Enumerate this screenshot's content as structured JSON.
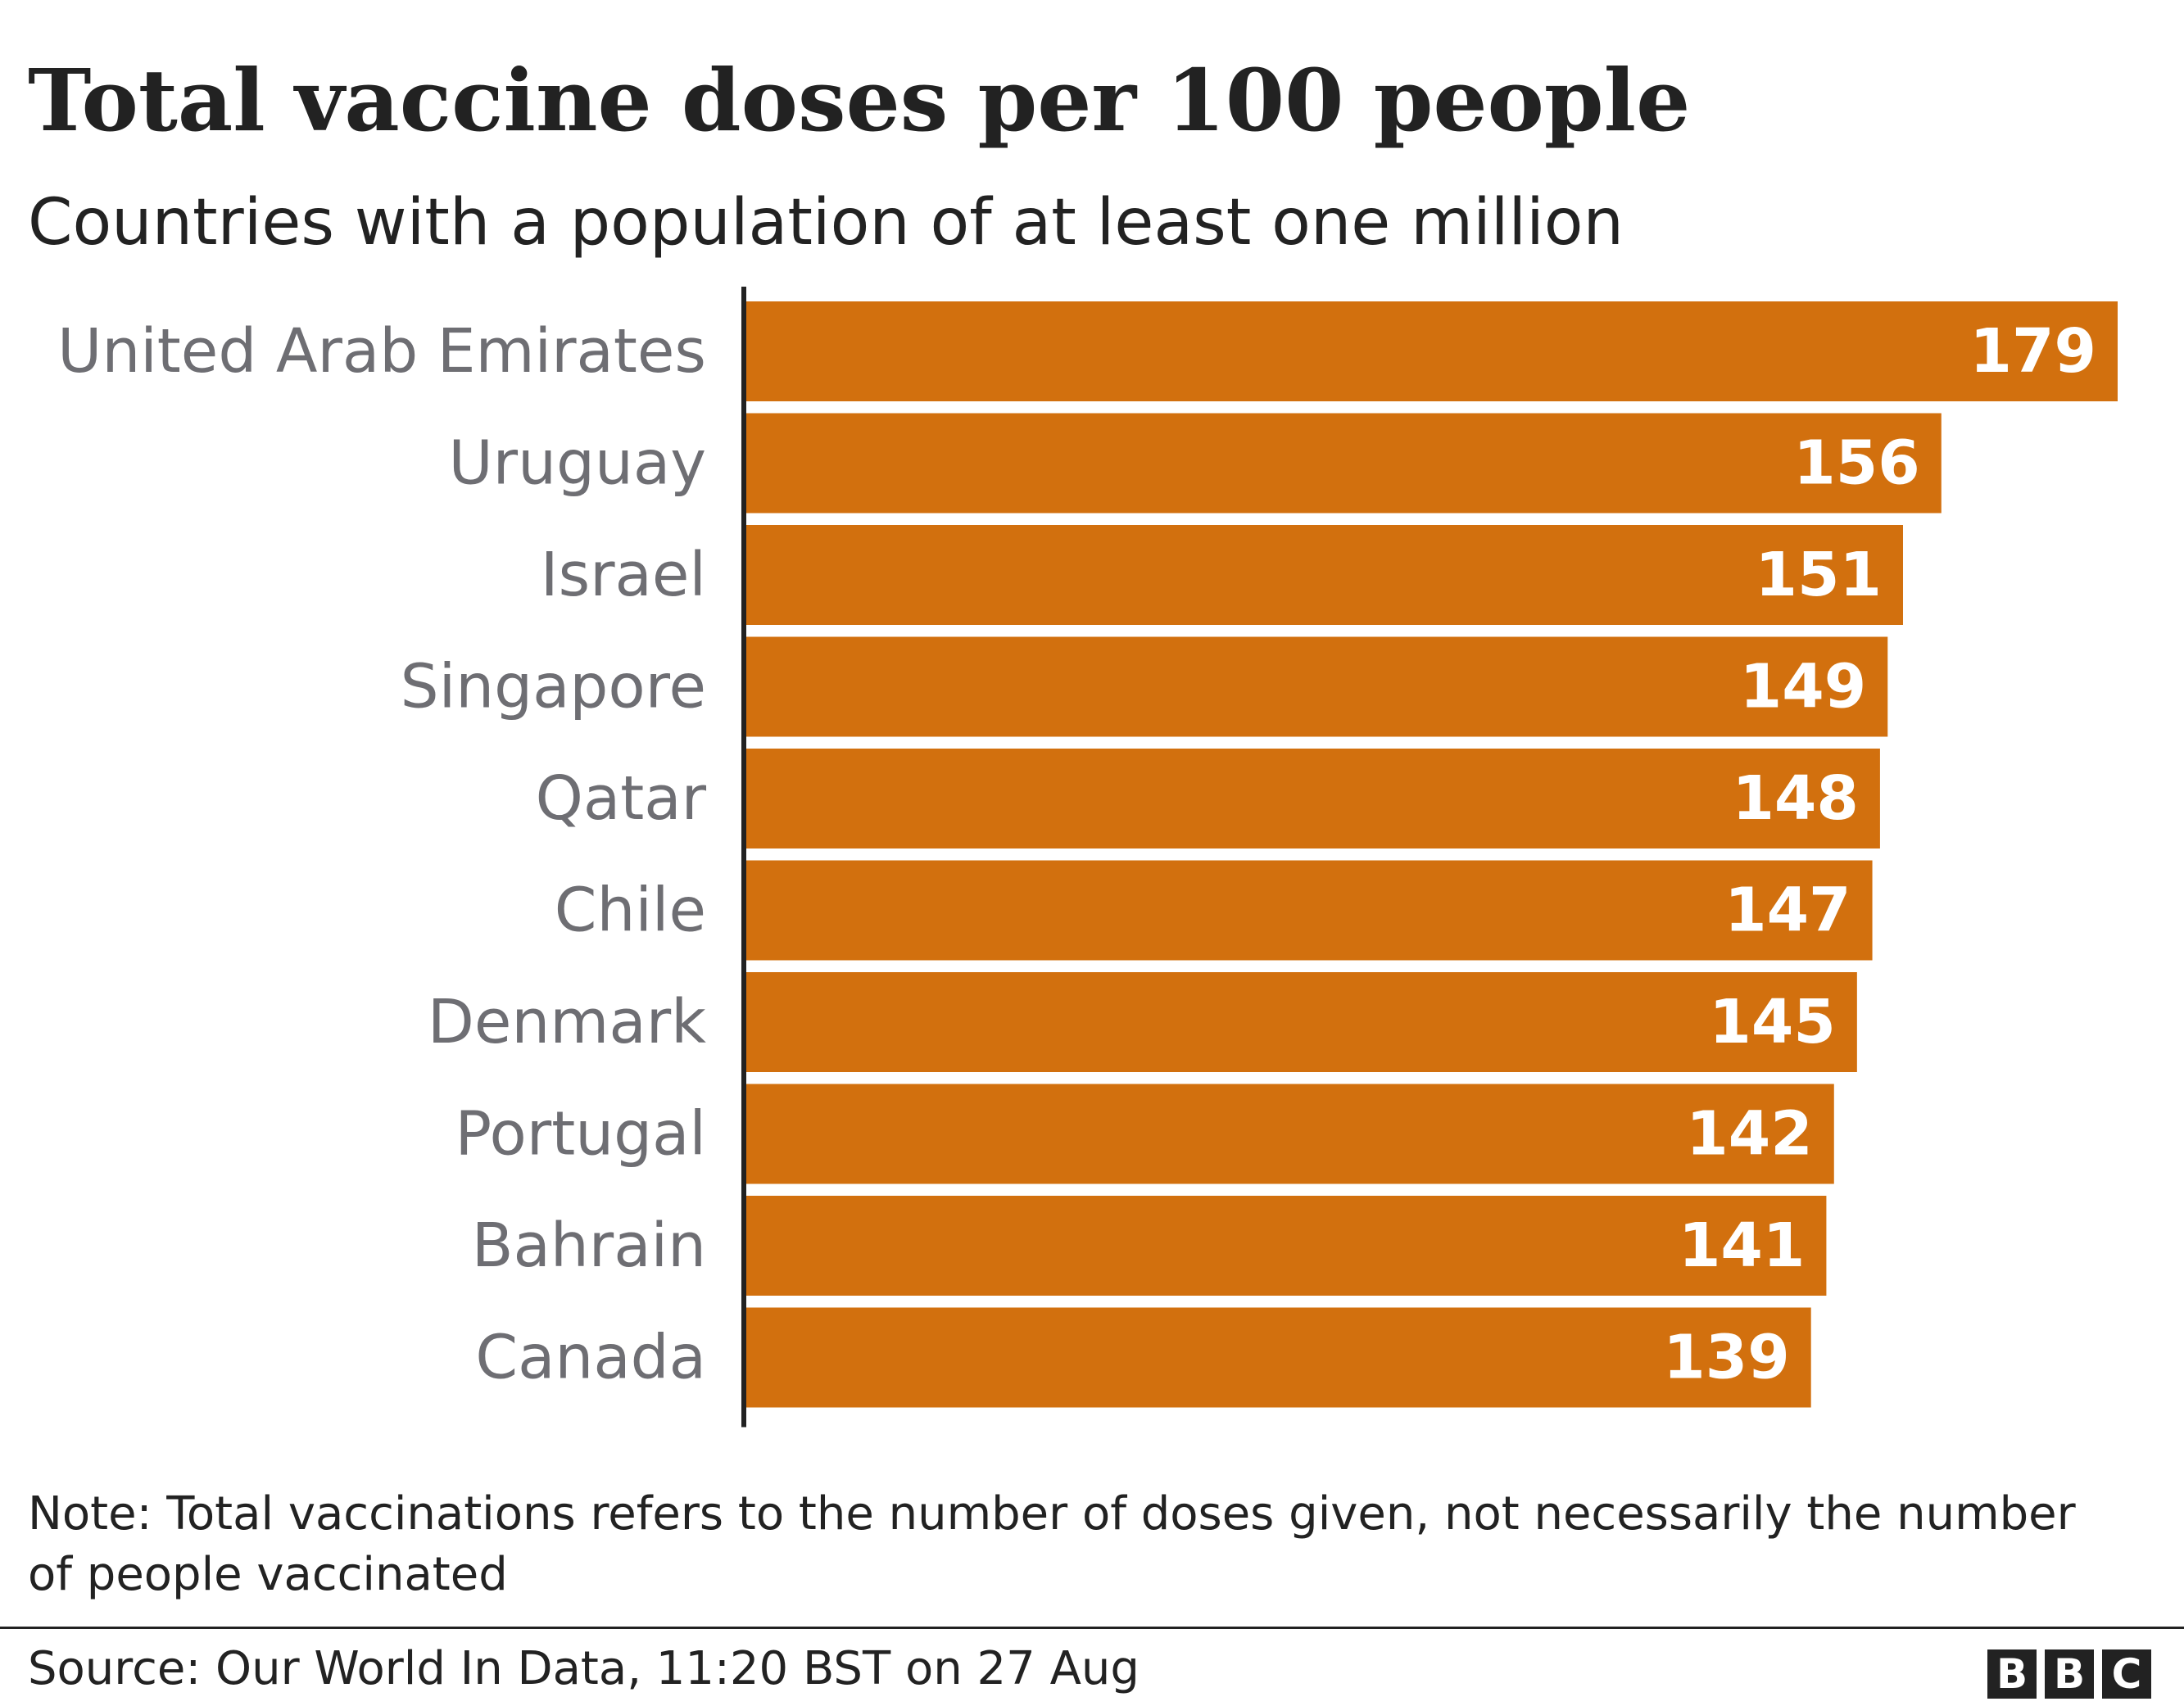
{
  "title": "Total vaccine doses per 100 people",
  "subtitle": "Countries with a population of at least one million",
  "note": "Note: Total vaccinations refers to the number of doses given, not necessarily the number of people vaccinated",
  "source": "Source: Our World In Data, 11:20 BST on 27 Aug",
  "logo": [
    "B",
    "B",
    "C"
  ],
  "colors": {
    "bar": "#d2700e",
    "axis": "#222222",
    "label": "#6e6e73",
    "value_text": "#ffffff"
  },
  "chart_data": {
    "type": "bar",
    "orientation": "horizontal",
    "title": "Total vaccine doses per 100 people",
    "subtitle": "Countries with a population of at least one million",
    "categories": [
      "United Arab Emirates",
      "Uruguay",
      "Israel",
      "Singapore",
      "Qatar",
      "Chile",
      "Denmark",
      "Portugal",
      "Bahrain",
      "Canada"
    ],
    "values": [
      179,
      156,
      151,
      149,
      148,
      147,
      145,
      142,
      141,
      139
    ],
    "xlim": [
      0,
      179
    ],
    "data_labels": true,
    "grid": false,
    "legend": "none"
  }
}
